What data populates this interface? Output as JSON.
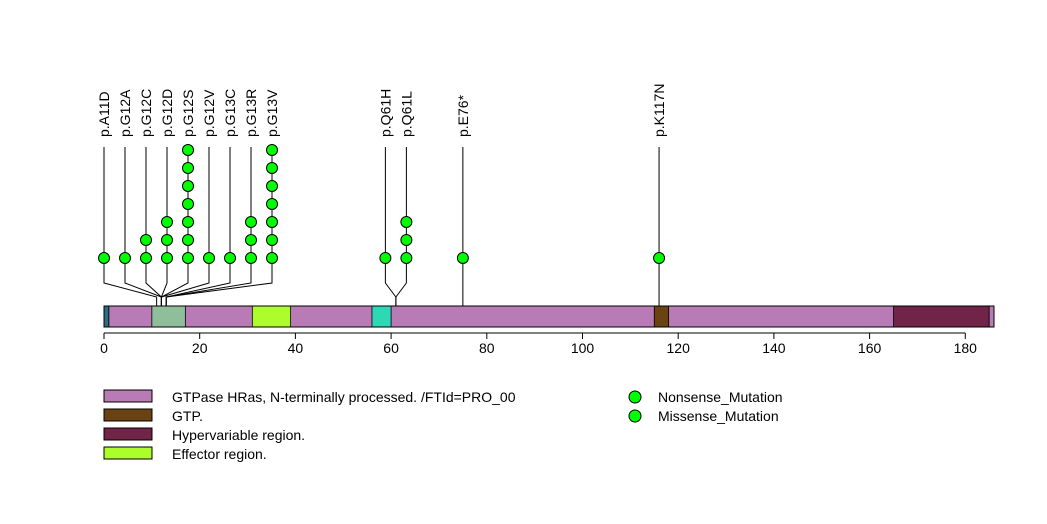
{
  "chart_data": {
    "type": "lollipop",
    "title": "",
    "protein_length": 186,
    "xlim": [
      0,
      186
    ],
    "x_ticks": [
      0,
      20,
      40,
      60,
      80,
      100,
      120,
      140,
      160,
      180
    ],
    "mutations": [
      {
        "label": "p.A11D",
        "position": 11,
        "count": 1,
        "type": "Missense_Mutation"
      },
      {
        "label": "p.G12A",
        "position": 12,
        "count": 1,
        "type": "Missense_Mutation"
      },
      {
        "label": "p.G12C",
        "position": 12,
        "count": 2,
        "type": "Missense_Mutation"
      },
      {
        "label": "p.G12D",
        "position": 12,
        "count": 3,
        "type": "Missense_Mutation"
      },
      {
        "label": "p.G12S",
        "position": 12,
        "count": 7,
        "type": "Missense_Mutation"
      },
      {
        "label": "p.G12V",
        "position": 12,
        "count": 1,
        "type": "Missense_Mutation"
      },
      {
        "label": "p.G13C",
        "position": 13,
        "count": 1,
        "type": "Missense_Mutation"
      },
      {
        "label": "p.G13R",
        "position": 13,
        "count": 3,
        "type": "Missense_Mutation"
      },
      {
        "label": "p.G13V",
        "position": 13,
        "count": 7,
        "type": "Missense_Mutation"
      },
      {
        "label": "p.Q61H",
        "position": 61,
        "count": 1,
        "type": "Missense_Mutation"
      },
      {
        "label": "p.Q61L",
        "position": 61,
        "count": 3,
        "type": "Missense_Mutation"
      },
      {
        "label": "p.E76*",
        "position": 75,
        "count": 1,
        "type": "Nonsense_Mutation"
      },
      {
        "label": "p.K117N",
        "position": 116,
        "count": 1,
        "type": "Missense_Mutation"
      }
    ],
    "domains": [
      {
        "name": "GTPase HRas, N-terminally processed. /FTId=PRO_00",
        "start": 1,
        "end": 186,
        "color": "#B97BB5"
      },
      {
        "name": "GTP.",
        "start": 10,
        "end": 17,
        "color": "#8FBF9A"
      },
      {
        "name": "Effector region.",
        "start": 31,
        "end": 39,
        "color": "#ADFC2B"
      },
      {
        "name": "",
        "start": 56,
        "end": 60,
        "color": "#2CD9B4"
      },
      {
        "name": "GTP.",
        "start": 115,
        "end": 118,
        "color": "#6B4312"
      },
      {
        "name": "Hypervariable region.",
        "start": 165,
        "end": 185,
        "color": "#6F2448"
      },
      {
        "name": "",
        "start": 0,
        "end": 1,
        "color": "#2A6F87"
      },
      {
        "name": "",
        "start": 185,
        "end": 186,
        "color": "#B97BB5"
      }
    ],
    "legend_domains": [
      {
        "name": "GTPase HRas, N-terminally processed. /FTId=PRO_00",
        "color": "#B97BB5"
      },
      {
        "name": "GTP.",
        "color": "#6B4312"
      },
      {
        "name": "Hypervariable region.",
        "color": "#6F2448"
      },
      {
        "name": "Effector region.",
        "color": "#ADFC2B"
      }
    ],
    "legend_mutations": [
      {
        "name": "Nonsense_Mutation",
        "color": "#00FF00"
      },
      {
        "name": "Missense_Mutation",
        "color": "#00FF00"
      }
    ]
  }
}
